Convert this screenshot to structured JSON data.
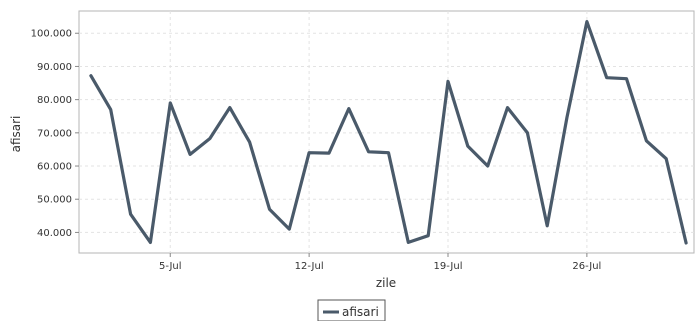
{
  "chart_data": {
    "type": "line",
    "xlabel": "zile",
    "ylabel": "afisari",
    "x_tick_labels": [
      {
        "label": "5-Jul",
        "day": 5
      },
      {
        "label": "12-Jul",
        "day": 12
      },
      {
        "label": "19-Jul",
        "day": 19
      },
      {
        "label": "26-Jul",
        "day": 26
      }
    ],
    "y_ticks": [
      40000,
      50000,
      60000,
      70000,
      80000,
      90000,
      100000
    ],
    "y_tick_labels": [
      "40.000",
      "50.000",
      "60.000",
      "70.000",
      "80.000",
      "90.000",
      "100.000"
    ],
    "xlim": [
      0.4,
      31.4
    ],
    "ylim": [
      33800,
      106700
    ],
    "grid": true,
    "legend_position": "bottom-center",
    "x": [
      "2013-07-01",
      "2013-07-02",
      "2013-07-03",
      "2013-07-04",
      "2013-07-05",
      "2013-07-06",
      "2013-07-07",
      "2013-07-08",
      "2013-07-09",
      "2013-07-10",
      "2013-07-11",
      "2013-07-12",
      "2013-07-13",
      "2013-07-14",
      "2013-07-15",
      "2013-07-16",
      "2013-07-17",
      "2013-07-18",
      "2013-07-19",
      "2013-07-20",
      "2013-07-21",
      "2013-07-22",
      "2013-07-23",
      "2013-07-24",
      "2013-07-25",
      "2013-07-26",
      "2013-07-27",
      "2013-07-28",
      "2013-07-29",
      "2013-07-30",
      "2013-07-31"
    ],
    "series": [
      {
        "name": "afisari",
        "color": "#4a5a6a",
        "values": [
          87200,
          77000,
          45500,
          37000,
          79000,
          63500,
          68300,
          77600,
          67200,
          47000,
          41000,
          64000,
          63900,
          77300,
          64300,
          64000,
          37000,
          39000,
          85500,
          66000,
          60000,
          77600,
          70000,
          42000,
          74700,
          103500,
          86600,
          86300,
          67600,
          62200,
          36800
        ]
      }
    ]
  }
}
